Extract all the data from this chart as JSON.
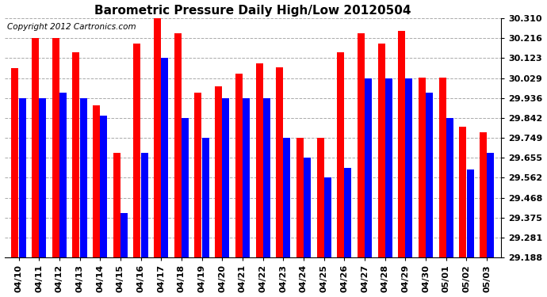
{
  "title": "Barometric Pressure Daily High/Low 20120504",
  "copyright": "Copyright 2012 Cartronics.com",
  "yticks": [
    29.188,
    29.281,
    29.375,
    29.468,
    29.562,
    29.655,
    29.749,
    29.842,
    29.936,
    30.029,
    30.123,
    30.216,
    30.31
  ],
  "ymin": 29.188,
  "ymax": 30.31,
  "dates": [
    "04/10",
    "04/11",
    "04/12",
    "04/13",
    "04/14",
    "04/15",
    "04/16",
    "04/17",
    "04/18",
    "04/19",
    "04/20",
    "04/21",
    "04/22",
    "04/23",
    "04/24",
    "04/25",
    "04/26",
    "04/27",
    "04/28",
    "04/29",
    "04/30",
    "05/01",
    "05/02",
    "05/03"
  ],
  "highs": [
    30.075,
    30.216,
    30.216,
    30.15,
    29.9,
    29.68,
    30.19,
    30.31,
    30.24,
    29.96,
    29.99,
    30.05,
    30.1,
    30.08,
    29.75,
    29.75,
    30.15,
    30.24,
    30.19,
    30.25,
    30.03,
    30.03,
    29.8,
    29.775
  ],
  "lows": [
    29.936,
    29.936,
    29.962,
    29.936,
    29.855,
    29.395,
    29.68,
    30.123,
    29.842,
    29.749,
    29.936,
    29.936,
    29.936,
    29.749,
    29.655,
    29.562,
    29.61,
    30.029,
    30.029,
    30.029,
    29.962,
    29.842,
    29.6,
    29.68
  ],
  "bar_color_high": "#ff0000",
  "bar_color_low": "#0000ff",
  "bg_color": "#ffffff",
  "grid_color": "#aaaaaa",
  "title_fontsize": 11,
  "tick_fontsize": 8,
  "copyright_fontsize": 7.5
}
